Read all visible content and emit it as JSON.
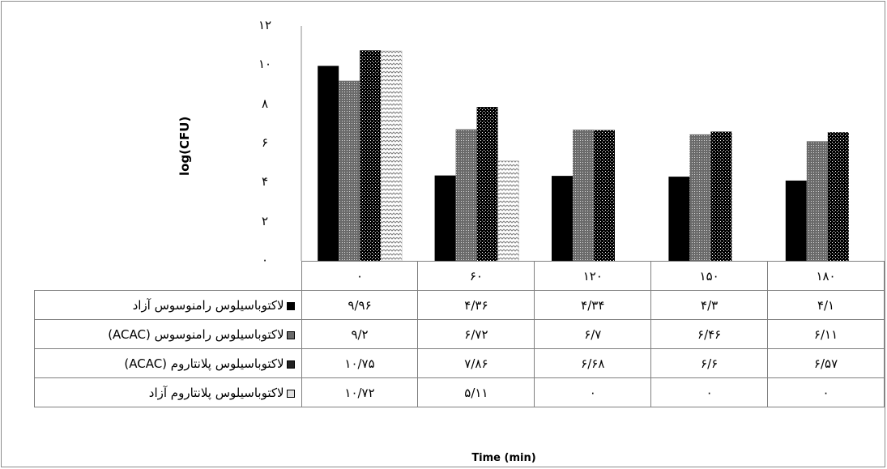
{
  "chart_data": {
    "type": "bar",
    "ylabel": "log(CFU)",
    "xlabel": "Time (min)",
    "ylim": [
      0,
      12
    ],
    "yticks": [
      "۰",
      "۲",
      "۴",
      "۶",
      "۸",
      "۱۰",
      "۱۲"
    ],
    "categories": [
      "۰",
      "۶۰",
      "۱۲۰",
      "۱۵۰",
      "۱۸۰"
    ],
    "x": [
      0,
      60,
      120,
      150,
      180
    ],
    "series": [
      {
        "name": "لاکتوباسیلوس رامنوسوس آزاد",
        "values": [
          9.96,
          4.36,
          4.34,
          4.3,
          4.1
        ],
        "labels": [
          "۹/۹۶",
          "۴/۳۶",
          "۴/۳۴",
          "۴/۳",
          "۴/۱"
        ],
        "pattern": "solid-black"
      },
      {
        "name": "لاکتوباسیلوس رامنوسوس (ACAC)",
        "values": [
          9.2,
          6.72,
          6.7,
          6.46,
          6.11
        ],
        "labels": [
          "۹/۲",
          "۶/۷۲",
          "۶/۷",
          "۶/۴۶",
          "۶/۱۱"
        ],
        "pattern": "dense-grid"
      },
      {
        "name": "لاکتوباسیلوس پلانتاروم (ACAC)",
        "values": [
          10.75,
          7.86,
          6.68,
          6.6,
          6.57
        ],
        "labels": [
          "۱۰/۷۵",
          "۷/۸۶",
          "۶/۶۸",
          "۶/۶",
          "۶/۵۷"
        ],
        "pattern": "black-white-dots"
      },
      {
        "name": "لاکتوباسیلوس پلانتاروم آزاد",
        "values": [
          10.72,
          5.11,
          0,
          0,
          0
        ],
        "labels": [
          "۱۰/۷۲",
          "۵/۱۱",
          "۰",
          "۰",
          "۰"
        ],
        "pattern": "zigzag"
      }
    ],
    "grid": false,
    "legend": "data-table-left"
  }
}
